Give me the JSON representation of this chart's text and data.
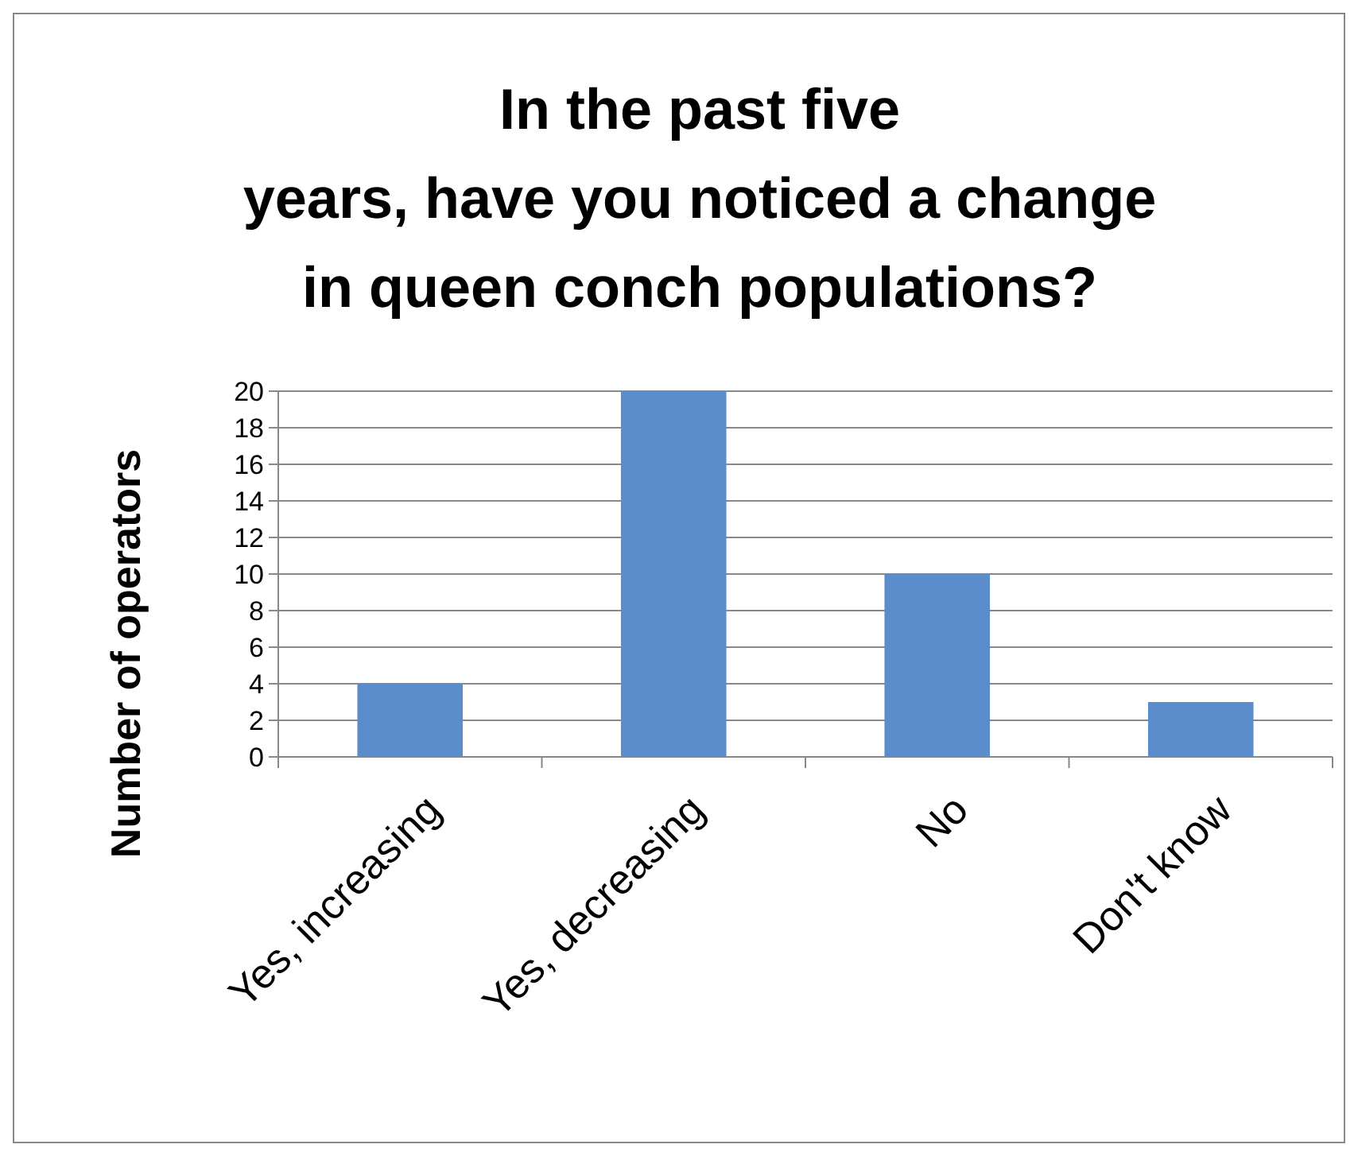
{
  "chart_data": {
    "type": "bar",
    "title": "In the past five\nyears, have you noticed a change\nin queen conch populations?",
    "ylabel": "Number of operators",
    "categories": [
      "Yes, increasing",
      "Yes, decreasing",
      "No",
      "Don't know"
    ],
    "values": [
      4,
      20,
      10,
      3
    ],
    "color": "#5b8ccb",
    "ylim": [
      0,
      20
    ],
    "yticks": [
      0,
      2,
      4,
      6,
      8,
      10,
      12,
      14,
      16,
      18,
      20
    ],
    "grid": "y"
  }
}
